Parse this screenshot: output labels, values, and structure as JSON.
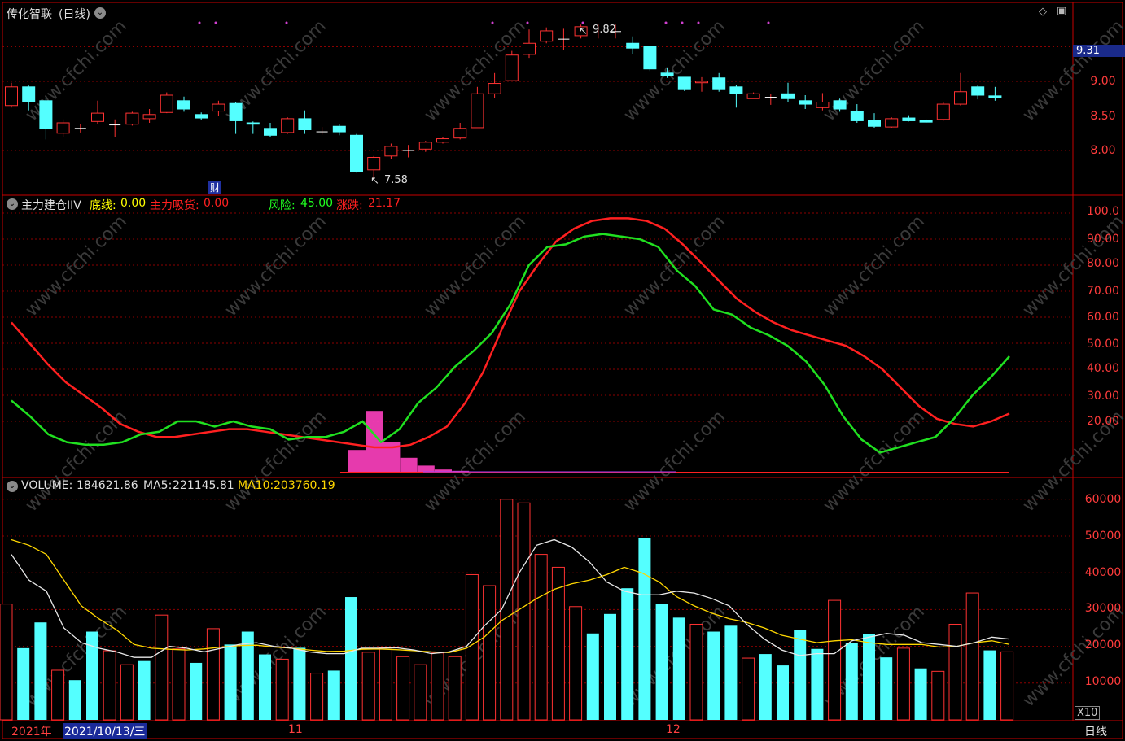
{
  "stock": {
    "name": "传化智联",
    "period": "(日线)",
    "high_mark": "9.82",
    "low_mark": "7.58",
    "fin_badge": "财",
    "price_tag": "9.31"
  },
  "price_axis": [
    "9.00",
    "8.50",
    "8.00"
  ],
  "indicator": {
    "name": "主力建仓IIV",
    "items": [
      {
        "label": "底线:",
        "value": "0.00",
        "color": "#ffff00"
      },
      {
        "label": "主力吸货:",
        "value": "0.00",
        "color": "#ff2020"
      },
      {
        "label": "风险:",
        "value": "45.00",
        "color": "#20ff20"
      },
      {
        "label": "涨跌:",
        "value": "21.17",
        "color": "#ff2020"
      }
    ],
    "axis": [
      "100.0",
      "90.00",
      "80.00",
      "70.00",
      "60.00",
      "50.00",
      "40.00",
      "30.00",
      "20.00"
    ],
    "risk_line": [
      28,
      22,
      15,
      12,
      11,
      11,
      12,
      15,
      16,
      20,
      20,
      18,
      20,
      18,
      17,
      13,
      14,
      14,
      16,
      20,
      12,
      17,
      27,
      33,
      41,
      47,
      54,
      65,
      80,
      87,
      88,
      91,
      92,
      91,
      90,
      87,
      78,
      72,
      63,
      61,
      56,
      53,
      49,
      43,
      34,
      22,
      13,
      8,
      10,
      12,
      14,
      21,
      30,
      37,
      45
    ],
    "change_line": [
      58,
      50,
      42,
      35,
      30,
      25,
      19,
      16,
      14,
      14,
      15,
      16,
      17,
      17,
      16,
      15,
      14,
      13,
      12,
      11,
      10,
      10,
      11,
      14,
      18,
      27,
      39,
      55,
      70,
      80,
      89,
      94,
      97,
      98,
      98,
      97,
      94,
      88,
      81,
      74,
      67,
      62,
      58,
      55,
      53,
      51,
      49,
      45,
      40,
      33,
      26,
      21,
      19,
      18,
      20,
      23
    ],
    "accum_bars": [
      0,
      0,
      0,
      0,
      0,
      0,
      0,
      0,
      0,
      0,
      0,
      0,
      0,
      0,
      0,
      0,
      0,
      0,
      0,
      0,
      9,
      24,
      12,
      6,
      3,
      1.5,
      1,
      0.6,
      0.4,
      0.2
    ]
  },
  "volume": {
    "title": "VOLUME:",
    "value": "184621.86",
    "ma5_label": "MA5:",
    "ma5_value": "221145.81",
    "ma10_label": "MA10:",
    "ma10_value": "203760.19",
    "axis": [
      "60000",
      "50000",
      "40000",
      "30000",
      "20000",
      "10000"
    ],
    "scale": "X10",
    "bars": [
      [
        31500,
        1
      ],
      [
        19500,
        0
      ],
      [
        26500,
        0
      ],
      [
        13500,
        1
      ],
      [
        10800,
        0
      ],
      [
        24000,
        0
      ],
      [
        18800,
        1
      ],
      [
        15000,
        1
      ],
      [
        16000,
        0
      ],
      [
        28500,
        1
      ],
      [
        19300,
        1
      ],
      [
        15500,
        0
      ],
      [
        24800,
        1
      ],
      [
        20500,
        0
      ],
      [
        24000,
        0
      ],
      [
        17800,
        0
      ],
      [
        16500,
        1
      ],
      [
        19600,
        0
      ],
      [
        12700,
        1
      ],
      [
        13400,
        0
      ],
      [
        33400,
        0
      ],
      [
        18400,
        1
      ],
      [
        19600,
        1
      ],
      [
        17200,
        1
      ],
      [
        15000,
        1
      ],
      [
        18200,
        1
      ],
      [
        17200,
        1
      ],
      [
        39500,
        1
      ],
      [
        36500,
        1
      ],
      [
        60000,
        1
      ],
      [
        59000,
        1
      ],
      [
        45000,
        1
      ],
      [
        41500,
        1
      ],
      [
        30800,
        1
      ],
      [
        23500,
        0
      ],
      [
        28800,
        0
      ],
      [
        35800,
        0
      ],
      [
        49400,
        0
      ],
      [
        31500,
        0
      ],
      [
        27800,
        0
      ],
      [
        26000,
        1
      ],
      [
        24000,
        0
      ],
      [
        25600,
        0
      ],
      [
        16800,
        1
      ],
      [
        17900,
        0
      ],
      [
        14800,
        0
      ],
      [
        24500,
        0
      ],
      [
        19300,
        0
      ],
      [
        32500,
        1
      ],
      [
        20800,
        0
      ],
      [
        23300,
        0
      ],
      [
        17000,
        0
      ],
      [
        19500,
        1
      ],
      [
        14000,
        0
      ],
      [
        13200,
        1
      ],
      [
        26000,
        1
      ],
      [
        34500,
        1
      ],
      [
        18900,
        0
      ],
      [
        18500,
        1
      ]
    ],
    "ma5": [
      45000,
      38000,
      35000,
      25000,
      21000,
      19500,
      18500,
      17000,
      17000,
      20000,
      19500,
      18500,
      19500,
      20500,
      21000,
      20000,
      19500,
      18500,
      18000,
      18000,
      19500,
      19500,
      19600,
      19000,
      18000,
      18500,
      20000,
      25500,
      30000,
      40000,
      47500,
      49000,
      47000,
      43000,
      37500,
      35000,
      34000,
      34000,
      35000,
      34500,
      33000,
      31000,
      26000,
      22000,
      19000,
      17500,
      18000,
      18000,
      21500,
      22500,
      23500,
      23000,
      21000,
      20500,
      20000,
      21000,
      22500,
      22000
    ],
    "ma10": [
      49000,
      47500,
      45000,
      38000,
      31000,
      27500,
      24500,
      20500,
      19500,
      19200,
      19000,
      19300,
      19800,
      20200,
      20300,
      19800,
      19500,
      19000,
      18600,
      18700,
      19200,
      19300,
      19100,
      18800,
      18500,
      18300,
      19500,
      22500,
      27000,
      30000,
      33000,
      35500,
      37000,
      38000,
      39500,
      41500,
      40000,
      37500,
      33500,
      31000,
      29000,
      27500,
      26500,
      25000,
      23000,
      22000,
      21000,
      21500,
      21800,
      21000,
      20500,
      20500,
      20500,
      19800,
      20000,
      21000,
      21500,
      20500
    ]
  },
  "time_axis": {
    "year": "2021年",
    "cursor_date": "2021/10/13/三",
    "m11": "11",
    "m12": "12",
    "period_btn": "日线"
  },
  "candles": [
    [
      8.65,
      8.92,
      8.98,
      8.62
    ],
    [
      8.92,
      8.7,
      8.94,
      8.58
    ],
    [
      8.72,
      8.32,
      8.76,
      8.16
    ],
    [
      8.25,
      8.4,
      8.45,
      8.2
    ],
    [
      8.32,
      8.32,
      8.38,
      8.26
    ],
    [
      8.42,
      8.54,
      8.72,
      8.38
    ],
    [
      8.37,
      8.37,
      8.45,
      8.2
    ],
    [
      8.38,
      8.54,
      8.56,
      8.36
    ],
    [
      8.46,
      8.52,
      8.6,
      8.4
    ],
    [
      8.55,
      8.8,
      8.84,
      8.54
    ],
    [
      8.72,
      8.6,
      8.78,
      8.56
    ],
    [
      8.52,
      8.47,
      8.55,
      8.44
    ],
    [
      8.57,
      8.67,
      8.72,
      8.5
    ],
    [
      8.68,
      8.43,
      8.7,
      8.24
    ],
    [
      8.4,
      8.38,
      8.42,
      8.24
    ],
    [
      8.32,
      8.22,
      8.4,
      8.2
    ],
    [
      8.26,
      8.46,
      8.48,
      8.24
    ],
    [
      8.46,
      8.3,
      8.58,
      8.24
    ],
    [
      8.27,
      8.27,
      8.34,
      8.23
    ],
    [
      8.35,
      8.27,
      8.38,
      8.22
    ],
    [
      8.22,
      7.7,
      8.24,
      7.68
    ],
    [
      7.72,
      7.9,
      7.92,
      7.58
    ],
    [
      7.92,
      8.06,
      8.1,
      7.88
    ],
    [
      8.0,
      8.0,
      8.08,
      7.9
    ],
    [
      8.02,
      8.12,
      8.14,
      7.98
    ],
    [
      8.12,
      8.17,
      8.2,
      8.1
    ],
    [
      8.18,
      8.32,
      8.4,
      8.16
    ],
    [
      8.33,
      8.82,
      8.92,
      8.33
    ],
    [
      8.82,
      8.97,
      9.12,
      8.76
    ],
    [
      9.01,
      9.38,
      9.44,
      9.0
    ],
    [
      9.39,
      9.55,
      9.75,
      9.34
    ],
    [
      9.58,
      9.73,
      9.78,
      9.55
    ],
    [
      9.61,
      9.61,
      9.76,
      9.45
    ],
    [
      9.66,
      9.79,
      9.82,
      9.62
    ],
    [
      9.7,
      9.7,
      9.82,
      9.62
    ],
    [
      9.72,
      9.72,
      9.82,
      9.62
    ],
    [
      9.55,
      9.48,
      9.65,
      9.4
    ],
    [
      9.5,
      9.18,
      9.5,
      9.15
    ],
    [
      9.12,
      9.08,
      9.2,
      9.05
    ],
    [
      9.06,
      8.88,
      9.06,
      8.86
    ],
    [
      8.98,
      9.0,
      9.06,
      8.85
    ],
    [
      9.05,
      8.88,
      9.12,
      8.85
    ],
    [
      8.92,
      8.82,
      8.95,
      8.62
    ],
    [
      8.75,
      8.82,
      8.84,
      8.76
    ],
    [
      8.77,
      8.77,
      8.82,
      8.66
    ],
    [
      8.82,
      8.75,
      8.98,
      8.7
    ],
    [
      8.72,
      8.67,
      8.8,
      8.6
    ],
    [
      8.62,
      8.7,
      8.83,
      8.58
    ],
    [
      8.72,
      8.6,
      8.75,
      8.56
    ],
    [
      8.57,
      8.43,
      8.67,
      8.4
    ],
    [
      8.43,
      8.35,
      8.54,
      8.33
    ],
    [
      8.34,
      8.46,
      8.48,
      8.33
    ],
    [
      8.47,
      8.43,
      8.51,
      8.42
    ],
    [
      8.43,
      8.41,
      8.45,
      8.4
    ],
    [
      8.45,
      8.67,
      8.7,
      8.43
    ],
    [
      8.67,
      8.85,
      9.12,
      8.65
    ],
    [
      8.92,
      8.8,
      8.95,
      8.74
    ],
    [
      8.79,
      8.76,
      8.92,
      8.72
    ]
  ],
  "signal_dots_x": [
    245,
    265,
    352,
    605,
    648,
    716,
    818,
    838,
    858,
    944
  ],
  "watermark": "www.cfchi.com",
  "colors": {
    "up": "#ff3232",
    "down": "#54ffff",
    "grid": "#8b0000",
    "frame": "#c80000"
  }
}
